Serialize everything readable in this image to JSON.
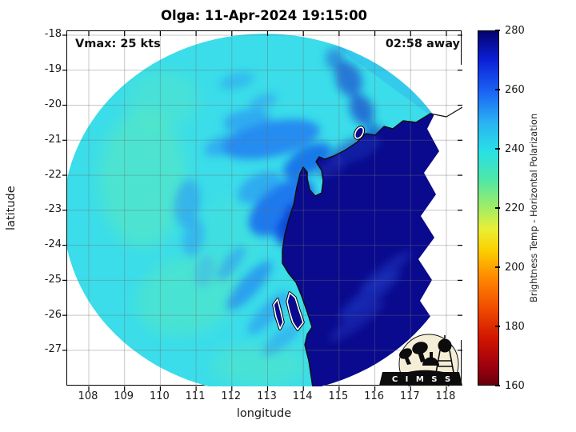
{
  "header": {
    "title": "Olga: 11-Apr-2024 19:15:00"
  },
  "annotations": {
    "vmax": "Vmax: 25 kts",
    "eta": "02:58 away"
  },
  "axes": {
    "xlabel": "longitude",
    "ylabel": "latitude",
    "xlim": [
      107.396,
      118.448
    ],
    "ylim": [
      -28.03,
      -17.886
    ],
    "xticks": [
      108,
      109,
      110,
      111,
      112,
      113,
      114,
      115,
      116,
      117,
      118
    ],
    "yticks": [
      -18,
      -19,
      -20,
      -21,
      -22,
      -23,
      -24,
      -25,
      -26,
      -27
    ],
    "grid": true
  },
  "colorbar": {
    "label": "Brightness Temp - Horizontal Polarization",
    "min": 160,
    "max": 280,
    "ticks": [
      160,
      180,
      200,
      220,
      240,
      260,
      280
    ],
    "stops": [
      {
        "c": "#67000a",
        "p": 0
      },
      {
        "c": "#9c0010",
        "p": 5
      },
      {
        "c": "#d01400",
        "p": 13
      },
      {
        "c": "#f24e00",
        "p": 22
      },
      {
        "c": "#ff8f00",
        "p": 31
      },
      {
        "c": "#fccf00",
        "p": 38
      },
      {
        "c": "#e9ef35",
        "p": 44
      },
      {
        "c": "#98ec6c",
        "p": 51
      },
      {
        "c": "#4fe7a7",
        "p": 58
      },
      {
        "c": "#28e0e5",
        "p": 66
      },
      {
        "c": "#2bb3f2",
        "p": 74
      },
      {
        "c": "#1a63f4",
        "p": 83
      },
      {
        "c": "#0c1fd6",
        "p": 92
      },
      {
        "c": "#03026e",
        "p": 100
      }
    ]
  },
  "logo": {
    "text": "C I M S S"
  },
  "chart_data": {
    "type": "heatmap",
    "subtype": "satellite-microwave-swath",
    "title": "Olga: 11-Apr-2024 19:15:00",
    "storm": {
      "name": "Olga",
      "datetime": "11-Apr-2024 19:15:00",
      "vmax_kts": 25,
      "next_overpass": "02:58 away"
    },
    "xlabel": "longitude",
    "ylabel": "latitude",
    "xlim": [
      107.4,
      118.45
    ],
    "ylim": [
      -28.0,
      -17.9
    ],
    "value_label": "Brightness Temp - Horizontal Polarization",
    "value_range_K": [
      160,
      280
    ],
    "colormap": "reversed-jet (160=dark red, 200=orange, 220=green, 240=cyan, 260=blue, 280=dark navy)",
    "features": [
      {
        "name": "swath-extent",
        "shape": "circular scan",
        "center_lon": 112.9,
        "center_lat": -22.9,
        "radius_deg": 5.6,
        "outside": "no data (white)"
      },
      {
        "name": "open-ocean",
        "bt_K": [
          232,
          242
        ],
        "color": "cyan",
        "coverage": "west/center of swath"
      },
      {
        "name": "warm-ocean-patches",
        "bt_K": [
          222,
          230
        ],
        "color": "green-cyan",
        "locations": [
          [
            108.8,
            -22.5
          ],
          [
            110.2,
            -25.3
          ],
          [
            112.3,
            -27.3
          ]
        ]
      },
      {
        "name": "tc-rainbands",
        "bt_K": [
          248,
          262
        ],
        "color": "blue",
        "pattern": "spiral bands around center near 112.5E, -22.5S; strongest band 111.5-114E at -20 to -23.5"
      },
      {
        "name": "land-Australia",
        "bt_K": [
          272,
          280
        ],
        "color": "dark navy",
        "region": "east of Western Australia coastline (lon > ~113.5-114.3)"
      },
      {
        "name": "coastline",
        "style": "white line with black outline inside swath; thin black outside",
        "landmarks": [
          "North West Cape / Exmouth Gulf ~114.1E -21.8S",
          "Barrow Island ~115.45E -20.8S",
          "Shark Bay / Dirk Hartog ~113.2-114.2E -25 to -27S"
        ]
      },
      {
        "name": "swath-seam",
        "note": "jagged stair-step scan edge on east side ~116.8-117.6E and diagonal overlap seam in NE quadrant"
      }
    ],
    "legend_position": "right colorbar",
    "grid": true
  }
}
